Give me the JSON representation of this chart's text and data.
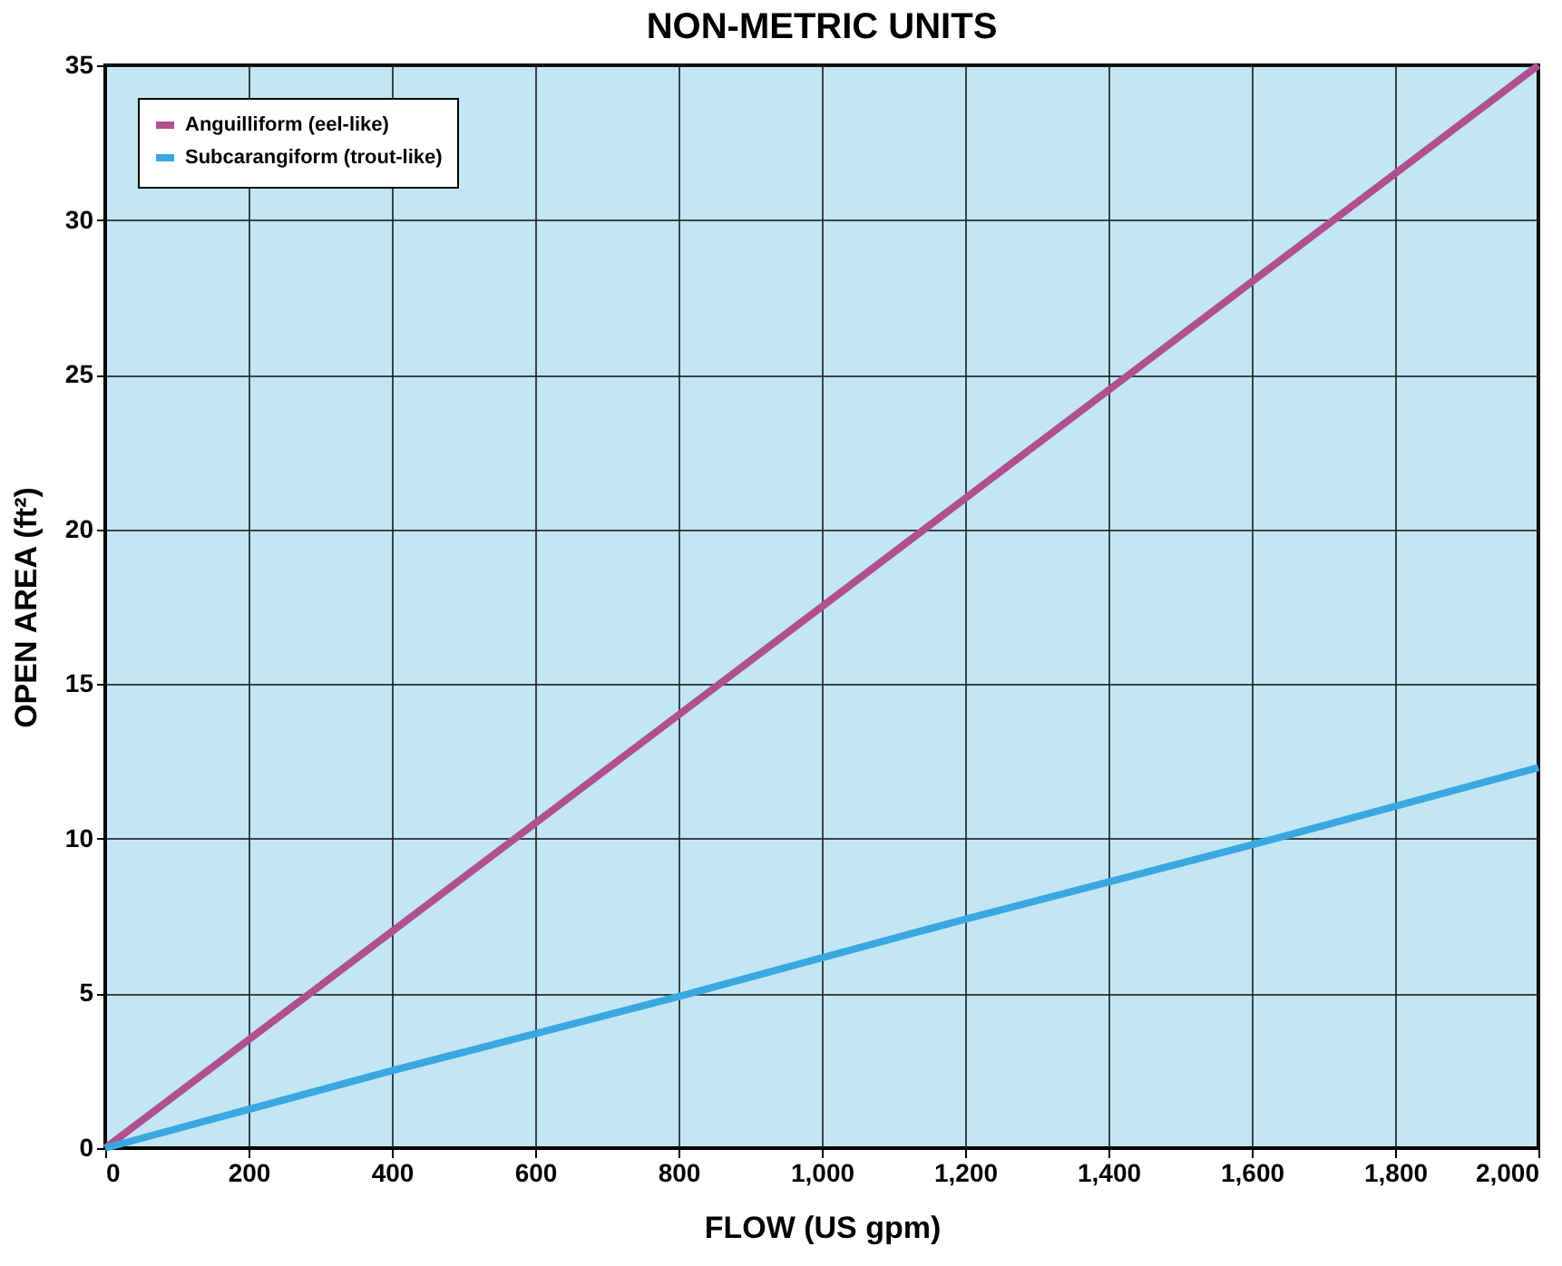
{
  "chart_data": {
    "type": "line",
    "title": "NON-METRIC UNITS",
    "xlabel": "FLOW (US gpm)",
    "ylabel": "OPEN AREA (ft²)",
    "series": [
      {
        "name": "Anguilliform (eel-like)",
        "color": "#b0508f",
        "x": [
          0,
          400,
          800,
          1200,
          1600,
          2000
        ],
        "values": [
          0,
          7,
          14,
          21,
          28,
          35
        ]
      },
      {
        "name": "Subcarangiform (trout-like)",
        "color": "#3aa8e0",
        "x": [
          0,
          400,
          800,
          1200,
          1600,
          2000
        ],
        "values": [
          0,
          2.5,
          4.9,
          7.4,
          9.8,
          12.3
        ]
      }
    ],
    "xlim": [
      0,
      2000
    ],
    "ylim": [
      0,
      35
    ],
    "xticks": [
      0,
      200,
      400,
      600,
      800,
      {
        "value": 1000,
        "label": "1,000"
      },
      {
        "value": 1200,
        "label": "1,200"
      },
      {
        "value": 1400,
        "label": "1,400"
      },
      {
        "value": 1600,
        "label": "1,600"
      },
      {
        "value": 1800,
        "label": "1,800"
      },
      {
        "value": 2000,
        "label": "2,000"
      }
    ],
    "yticks": [
      0,
      5,
      10,
      15,
      20,
      25,
      30,
      35
    ],
    "grid": true,
    "legend": "top left",
    "marker": "none",
    "line_style": "solid"
  }
}
